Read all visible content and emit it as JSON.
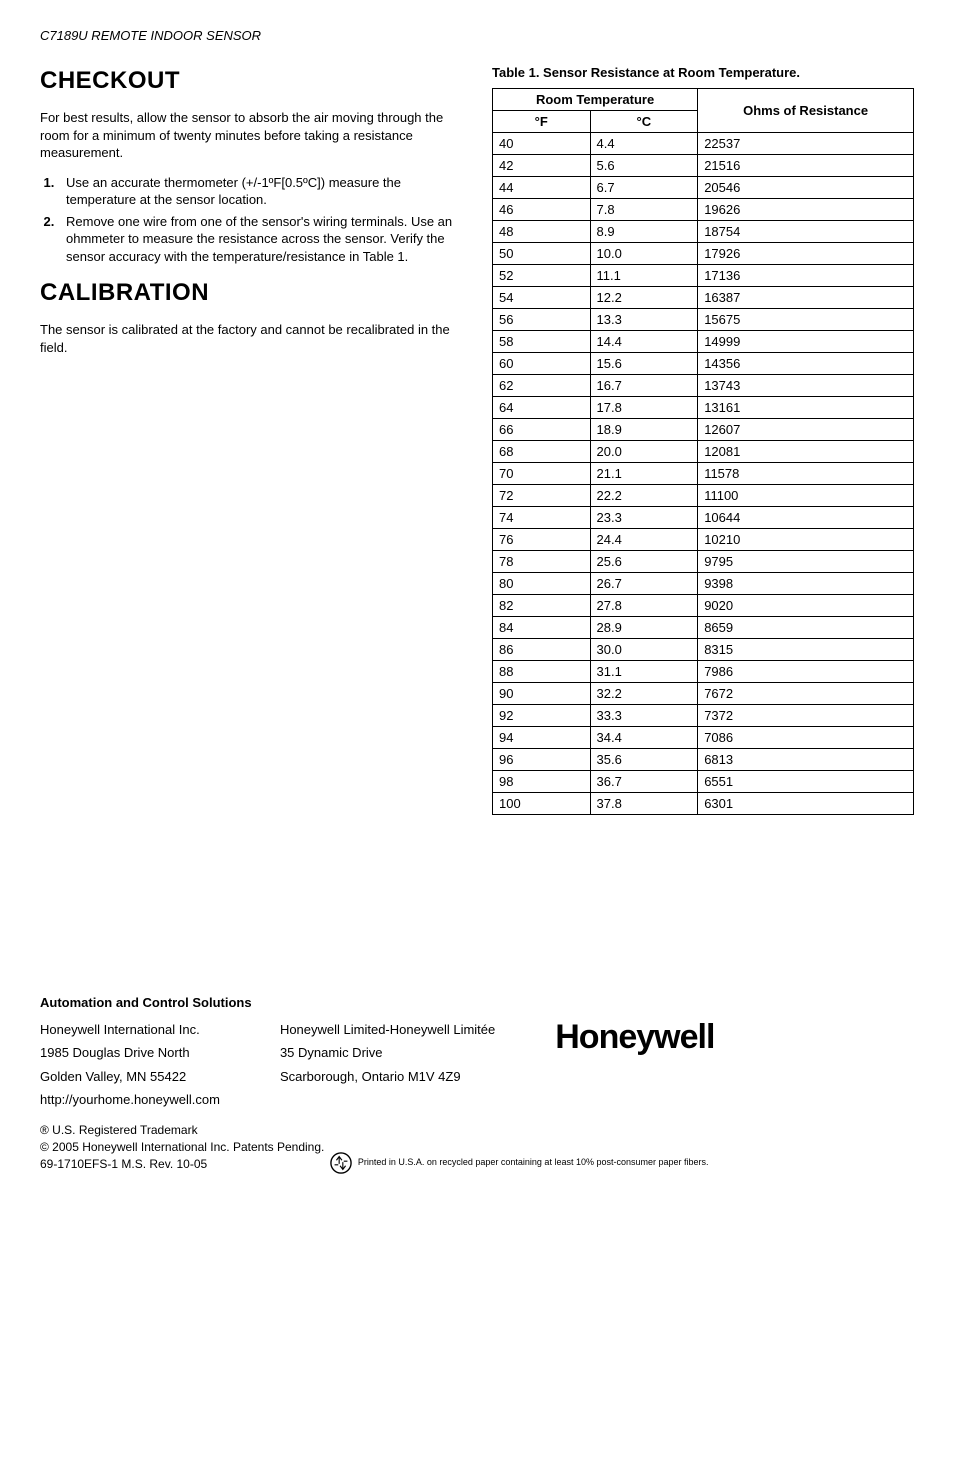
{
  "doc": {
    "model": "C7189U REMOTE INDOOR SENSOR"
  },
  "sections": {
    "checkout": {
      "title": "CHECKOUT",
      "para": "For best results, allow the sensor to absorb the air moving through the room for a minimum of twenty minutes before taking a resistance measurement.",
      "steps": [
        "Use an accurate thermometer (+/-1ºF[0.5ºC]) measure the temperature at the sensor location.",
        "Remove one wire from one of the sensor's wiring terminals. Use an ohmmeter to measure the resistance across the sensor. Verify the sensor accuracy with the temperature/resistance in Table 1."
      ]
    },
    "calibration": {
      "title": "CALIBRATION",
      "para": "The sensor is calibrated at the factory and cannot be recalibrated in the field."
    }
  },
  "table": {
    "caption": "Table 1. Sensor Resistance at Room Temperature.",
    "head_group": "Room Temperature",
    "head_ohms": "Ohms of Resistance",
    "head_f": "°F",
    "head_c": "°C",
    "rows": [
      {
        "f": "40",
        "c": "4.4",
        "r": "22537"
      },
      {
        "f": "42",
        "c": "5.6",
        "r": "21516"
      },
      {
        "f": "44",
        "c": "6.7",
        "r": "20546"
      },
      {
        "f": "46",
        "c": "7.8",
        "r": "19626"
      },
      {
        "f": "48",
        "c": "8.9",
        "r": "18754"
      },
      {
        "f": "50",
        "c": "10.0",
        "r": "17926"
      },
      {
        "f": "52",
        "c": "11.1",
        "r": "17136"
      },
      {
        "f": "54",
        "c": "12.2",
        "r": "16387"
      },
      {
        "f": "56",
        "c": "13.3",
        "r": "15675"
      },
      {
        "f": "58",
        "c": "14.4",
        "r": "14999"
      },
      {
        "f": "60",
        "c": "15.6",
        "r": "14356"
      },
      {
        "f": "62",
        "c": "16.7",
        "r": "13743"
      },
      {
        "f": "64",
        "c": "17.8",
        "r": "13161"
      },
      {
        "f": "66",
        "c": "18.9",
        "r": "12607"
      },
      {
        "f": "68",
        "c": "20.0",
        "r": "12081"
      },
      {
        "f": "70",
        "c": "21.1",
        "r": "11578"
      },
      {
        "f": "72",
        "c": "22.2",
        "r": "11100"
      },
      {
        "f": "74",
        "c": "23.3",
        "r": "10644"
      },
      {
        "f": "76",
        "c": "24.4",
        "r": "10210"
      },
      {
        "f": "78",
        "c": "25.6",
        "r": "9795"
      },
      {
        "f": "80",
        "c": "26.7",
        "r": "9398"
      },
      {
        "f": "82",
        "c": "27.8",
        "r": "9020"
      },
      {
        "f": "84",
        "c": "28.9",
        "r": "8659"
      },
      {
        "f": "86",
        "c": "30.0",
        "r": "8315"
      },
      {
        "f": "88",
        "c": "31.1",
        "r": "7986"
      },
      {
        "f": "90",
        "c": "32.2",
        "r": "7672"
      },
      {
        "f": "92",
        "c": "33.3",
        "r": "7372"
      },
      {
        "f": "94",
        "c": "34.4",
        "r": "7086"
      },
      {
        "f": "96",
        "c": "35.6",
        "r": "6813"
      },
      {
        "f": "98",
        "c": "36.7",
        "r": "6551"
      },
      {
        "f": "100",
        "c": "37.8",
        "r": "6301"
      }
    ]
  },
  "footer": {
    "heading": "Automation and Control Solutions",
    "left_lines": [
      "Honeywell International Inc.",
      "1985 Douglas Drive North",
      "Golden Valley, MN  55422",
      "http://yourhome.honeywell.com"
    ],
    "right_lines": [
      "Honeywell Limited-Honeywell Limitée",
      "35 Dynamic Drive",
      "Scarborough, Ontario  M1V 4Z9"
    ],
    "trademark": "® U.S. Registered Trademark",
    "copyright": "© 2005 Honeywell International Inc. Patents Pending.",
    "docnum": "69-1710EFS-1    M.S.  Rev. 10-05",
    "print_note": "Printed in U.S.A. on recycled paper containing at least 10% post-consumer paper fibers.",
    "logo": "Honeywell"
  }
}
